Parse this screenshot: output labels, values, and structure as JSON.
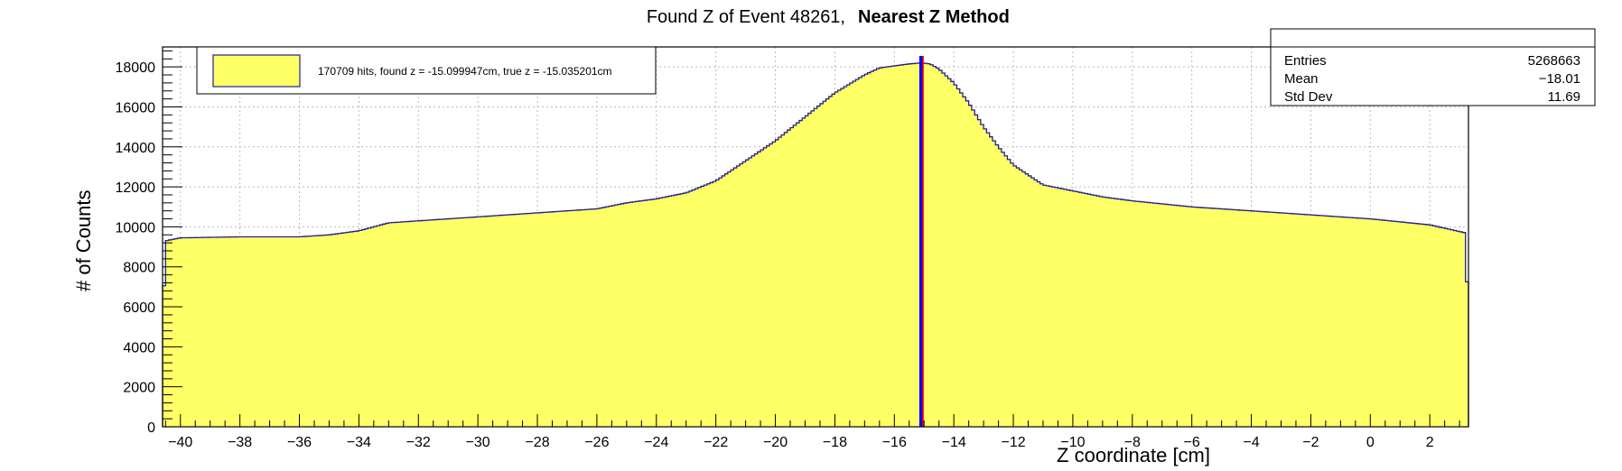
{
  "colors": {
    "fill": "#ffff66",
    "line": "#1f1f8f",
    "marker_blue": "#0000ff",
    "marker_red": "#ff0000"
  },
  "chart_data": {
    "type": "bar",
    "title_normal": "Found Z of Event 48261,",
    "title_bold": "Nearest Z Method",
    "xlabel": "Z coordinate [cm]",
    "ylabel": "# of Counts",
    "xlim": [
      -40.6,
      3.3
    ],
    "ylim": [
      0,
      19000
    ],
    "grid": true,
    "x_ticks": [
      -40,
      -38,
      -36,
      -34,
      -32,
      -30,
      -28,
      -26,
      -24,
      -22,
      -20,
      -18,
      -16,
      -14,
      -12,
      -10,
      -8,
      -6,
      -4,
      -2,
      0,
      2
    ],
    "x_tick_labels": [
      "−40",
      "−38",
      "−36",
      "−34",
      "−32",
      "−30",
      "−28",
      "−26",
      "−24",
      "−22",
      "−20",
      "−18",
      "−16",
      "−14",
      "−12",
      "−10",
      "−8",
      "−6",
      "−4",
      "−2",
      "0",
      "2"
    ],
    "y_ticks": [
      0,
      2000,
      4000,
      6000,
      8000,
      10000,
      12000,
      14000,
      16000,
      18000
    ],
    "y_tick_labels": [
      "0",
      "2000",
      "4000",
      "6000",
      "8000",
      "10000",
      "12000",
      "14000",
      "16000",
      "18000"
    ],
    "series": [
      {
        "name": "170709 hits, found z = -15.099947cm, true z = -15.035201cm",
        "x": [
          -40.6,
          -40.5,
          -40.0,
          -38.0,
          -36.0,
          -35.0,
          -34.0,
          -33.0,
          -32.0,
          -30.0,
          -28.0,
          -26.0,
          -25.0,
          -24.0,
          -23.0,
          -22.0,
          -21.0,
          -20.0,
          -19.0,
          -18.0,
          -17.0,
          -16.5,
          -16.0,
          -15.5,
          -15.1,
          -14.8,
          -14.5,
          -14.0,
          -13.5,
          -13.0,
          -12.5,
          -12.0,
          -11.0,
          -10.0,
          -9.0,
          -8.0,
          -6.0,
          -4.0,
          -2.0,
          0.0,
          2.0,
          3.2,
          3.3
        ],
        "y": [
          4800,
          9300,
          9450,
          9500,
          9500,
          9600,
          9800,
          10200,
          10300,
          10500,
          10700,
          10900,
          11200,
          11400,
          11700,
          12300,
          13300,
          14300,
          15500,
          16700,
          17600,
          17950,
          18050,
          18150,
          18200,
          18150,
          17900,
          17200,
          16200,
          15000,
          14000,
          13100,
          12100,
          11800,
          11500,
          11300,
          11000,
          10800,
          10600,
          10400,
          10100,
          9700,
          4800
        ]
      }
    ],
    "markers": [
      {
        "name": "found z",
        "x": -15.099947,
        "color": "#0000ff"
      },
      {
        "name": "true z",
        "x": -15.035201,
        "color": "#ff0000"
      }
    ],
    "legend": {
      "placement": "top-left",
      "label": "170709 hits, found z = -15.099947cm, true z = -15.035201cm"
    },
    "stats": {
      "placement": "top-right",
      "rows": [
        {
          "label": "Entries",
          "value": "5268663"
        },
        {
          "label": "Mean",
          "value": "−18.01"
        },
        {
          "label": "Std Dev",
          "value": "11.69"
        }
      ]
    }
  }
}
